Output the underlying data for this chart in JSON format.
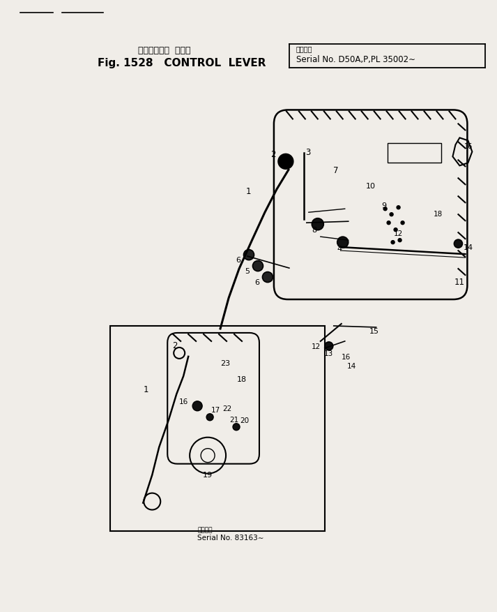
{
  "title_jp": "コントロール  レバー",
  "title_en": "Fig. 1528   CONTROL  LEVER",
  "serial_jp": "適用号機",
  "serial_en": "Serial No. D50A,P,PL 35002∼",
  "inset_serial_jp": "適用号機",
  "inset_serial_en": "Serial No. 83163∼",
  "bg_color": "#f0ede8",
  "lc": "#000000",
  "fig_width": 7.13,
  "fig_height": 8.78,
  "dpi": 100
}
